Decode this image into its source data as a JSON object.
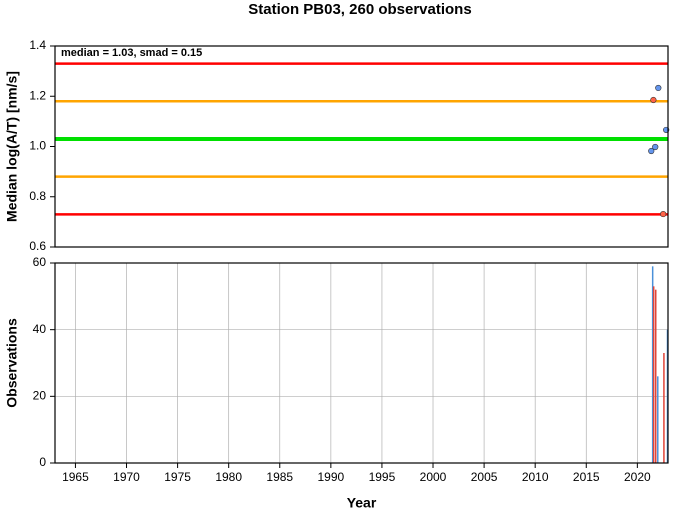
{
  "chart_data": [
    {
      "type": "scatter",
      "title": "Station PB03, 260 observations",
      "ylabel": "Median log(A/T) [nm/s]",
      "annotation": "median = 1.03, smad = 0.15",
      "xlim": [
        1963,
        2023
      ],
      "ylim": [
        0.6,
        1.4
      ],
      "yticks": [
        0.6,
        0.8,
        {
          "value": 1,
          "label": "1.0"
        },
        1.2,
        1.4
      ],
      "hlines": [
        {
          "value": 1.33,
          "color": "#ff0000"
        },
        {
          "value": 1.18,
          "color": "#ffa500"
        },
        {
          "value": 1.03,
          "color": "#00e000"
        },
        {
          "value": 0.88,
          "color": "#ffa500"
        },
        {
          "value": 0.73,
          "color": "#ff0000"
        }
      ],
      "series": [
        {
          "color": "#6495ed",
          "x": [
            2022.05,
            2021.36,
            2021.75,
            2022.82
          ],
          "values": [
            1.233,
            0.982,
            0.998,
            1.066
          ]
        },
        {
          "color": "#ff6347",
          "x": [
            2021.57,
            2022.53
          ],
          "values": [
            1.185,
            0.731
          ]
        }
      ]
    },
    {
      "type": "bar",
      "xlabel": "Year",
      "ylabel": "Observations",
      "xlim": [
        1963,
        2023
      ],
      "ylim": [
        0,
        60
      ],
      "yticks": [
        0,
        20,
        40,
        60
      ],
      "xticks": [
        1965,
        1970,
        1975,
        1980,
        1985,
        1990,
        1995,
        2000,
        2005,
        2010,
        2015,
        2020
      ],
      "grid": true,
      "series": [
        {
          "color": "#4a90d9",
          "x": [
            2021.5,
            2022.0,
            2022.95
          ],
          "values": [
            59,
            26,
            40
          ]
        },
        {
          "color": "#e0453a",
          "x": [
            2021.6,
            2021.8,
            2022.6
          ],
          "values": [
            53,
            52,
            33
          ]
        }
      ]
    }
  ]
}
